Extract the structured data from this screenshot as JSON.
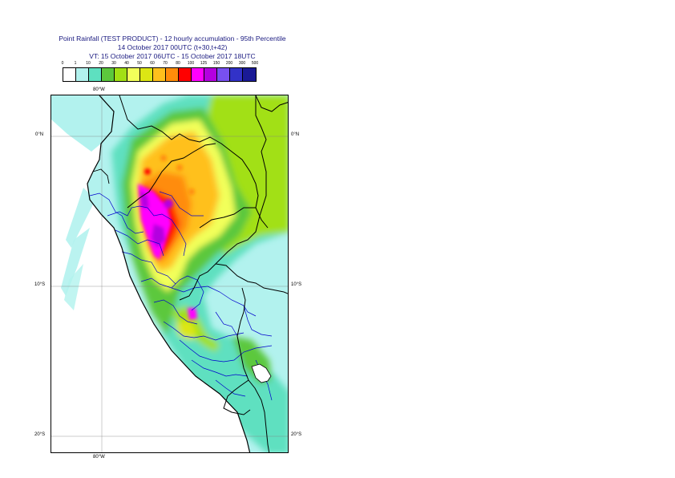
{
  "title": {
    "line1": "Point Rainfall (TEST PRODUCT) - 12 hourly accumulation - 95th Percentile",
    "line2": "14 October 2017 00UTC (t+30,t+42)",
    "line3": "VT: 15 October 2017 06UTC - 15 October 2017 18UTC"
  },
  "legend": {
    "thresholds": [
      "0",
      "1",
      "10",
      "20",
      "30",
      "40",
      "50",
      "60",
      "70",
      "80",
      "100",
      "125",
      "150",
      "200",
      "300",
      "500"
    ],
    "colors": [
      "#ffffff",
      "#b2f2ee",
      "#5ee0c0",
      "#5cc83c",
      "#a2e014",
      "#f2ff5a",
      "#dce614",
      "#ffc01c",
      "#ff8c0a",
      "#ff0000",
      "#ff00ff",
      "#b400e0",
      "#7850f0",
      "#3232c8",
      "#1a1a96"
    ]
  },
  "axes": {
    "top_lon": "80°W",
    "bottom_lon": "80°W",
    "lat_0_left": "0°N",
    "lat_0_right": "0°N",
    "lat_10_left": "10°S",
    "lat_10_right": "10°S",
    "lat_20_left": "20°S",
    "lat_20_right": "20°S"
  },
  "colors": {
    "title_text": "#1a1a80",
    "sea": "#ffffff",
    "country_border": "#000000",
    "region_border": "#0000cc"
  }
}
